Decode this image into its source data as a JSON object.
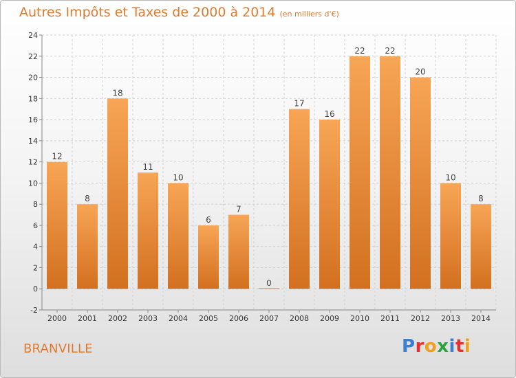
{
  "header": {
    "title": "Autres Impôts et Taxes de 2000 à 2014",
    "subtitle": "(en milliers d'€)"
  },
  "footer": {
    "city": "BRANVILLE",
    "logo_letters": [
      "P",
      "r",
      "o",
      "x",
      "i",
      "t",
      "i"
    ],
    "logo_colors": [
      "#3a7fd0",
      "#e2312e",
      "#f0a020",
      "#2ea040",
      "#3a7fd0",
      "#e2312e",
      "#f0a020"
    ]
  },
  "colors": {
    "bar_light": "#f7a556",
    "bar_dark": "#d2701f",
    "title": "#e07a2e"
  },
  "chart_data": {
    "type": "bar",
    "title": "Autres Impôts et Taxes de 2000 à 2014",
    "subtitle": "(en milliers d'€)",
    "categories": [
      "2000",
      "2001",
      "2002",
      "2003",
      "2004",
      "2005",
      "2006",
      "2007",
      "2008",
      "2009",
      "2010",
      "2011",
      "2012",
      "2013",
      "2014"
    ],
    "values": [
      12,
      8,
      18,
      11,
      10,
      6,
      7,
      0,
      17,
      16,
      22,
      22,
      20,
      10,
      8
    ],
    "ylim": [
      -2,
      24
    ],
    "yticks": [
      -2,
      0,
      2,
      4,
      6,
      8,
      10,
      12,
      14,
      16,
      18,
      20,
      22,
      24
    ],
    "grid": true,
    "data_labels": true
  }
}
